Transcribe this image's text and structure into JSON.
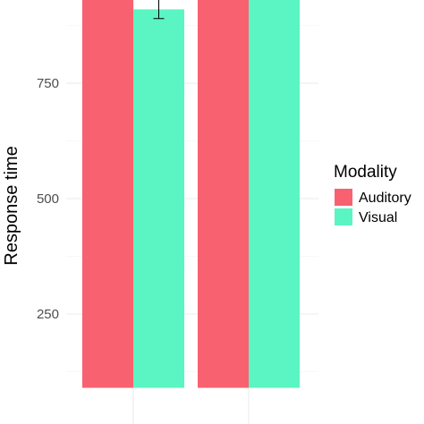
{
  "chart_data": {
    "type": "bar",
    "ylabel": "Response time",
    "xlabel": "",
    "title": "",
    "ylim": [
      90,
      1000
    ],
    "yticks": [
      250,
      500,
      750
    ],
    "grid": true,
    "groups": 2,
    "series": [
      {
        "name": "Auditory",
        "color": "#F8616F",
        "values": [
          1000,
          1000
        ]
      },
      {
        "name": "Visual",
        "color": "#5AF5C2",
        "values": [
          910,
          1000
        ],
        "errors": [
          [
            890,
            935
          ],
          null
        ]
      }
    ],
    "legend": {
      "title": "Modality",
      "position": "right"
    }
  }
}
